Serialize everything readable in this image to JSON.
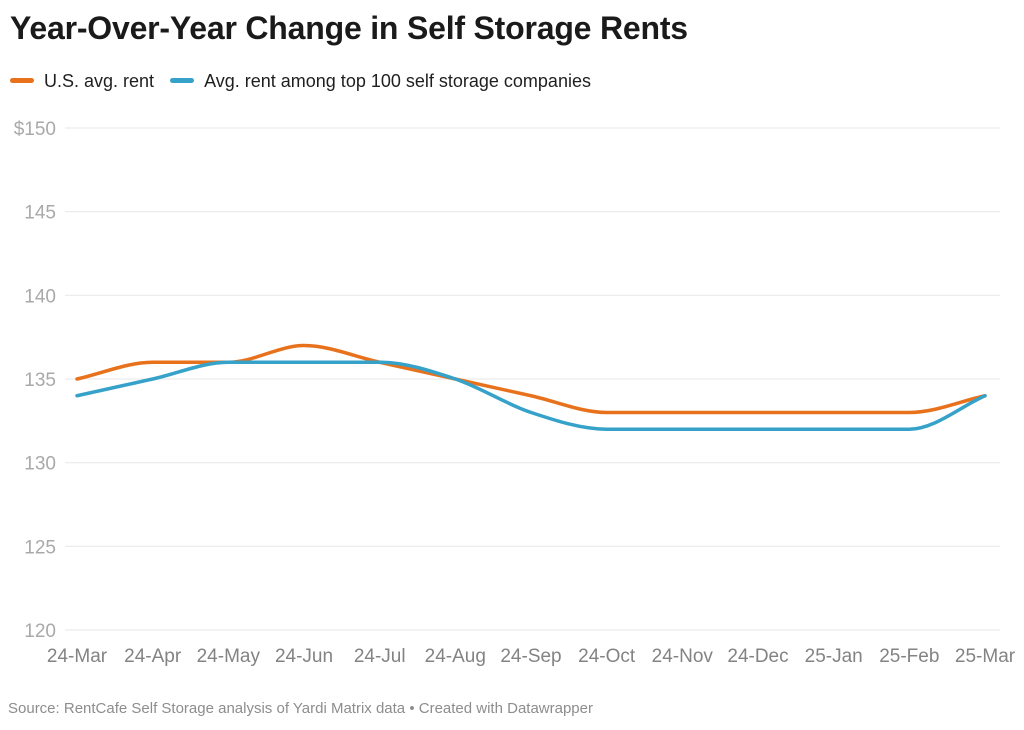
{
  "header": {
    "title": "Year-Over-Year Change in Self Storage Rents"
  },
  "legend": {
    "items": [
      {
        "label": "U.S. avg. rent",
        "color": "#e8721c"
      },
      {
        "label": "Avg. rent among top 100 self storage companies",
        "color": "#36a2c9"
      }
    ]
  },
  "chart_data": {
    "type": "line",
    "title": "Year-Over-Year Change in Self Storage Rents",
    "categories": [
      "24-Mar",
      "24-Apr",
      "24-May",
      "24-Jun",
      "24-Jul",
      "24-Aug",
      "24-Sep",
      "24-Oct",
      "24-Nov",
      "24-Dec",
      "25-Jan",
      "25-Feb",
      "25-Mar"
    ],
    "series": [
      {
        "name": "U.S. avg. rent",
        "color": "#e8721c",
        "values": [
          135,
          136,
          136,
          137,
          136,
          135,
          134,
          133,
          133,
          133,
          133,
          133,
          134
        ]
      },
      {
        "name": "Avg. rent among top 100 self storage companies",
        "color": "#36a2c9",
        "values": [
          134,
          135,
          136,
          136,
          136,
          135,
          133,
          132,
          132,
          132,
          132,
          132,
          134
        ]
      }
    ],
    "y_ticks": [
      {
        "label": "$150",
        "value": 150
      },
      {
        "label": "145",
        "value": 145
      },
      {
        "label": "140",
        "value": 140
      },
      {
        "label": "135",
        "value": 135
      },
      {
        "label": "130",
        "value": 130
      },
      {
        "label": "125",
        "value": 125
      },
      {
        "label": "120",
        "value": 120
      }
    ],
    "ylim": [
      120,
      150
    ],
    "unit_prefix": "$",
    "grid": "horizontal",
    "legend_position": "top",
    "curve": "smooth-monotone"
  },
  "footer": {
    "source_text": "Source: RentCafe Self Storage analysis of Yardi Matrix data • Created with Datawrapper"
  },
  "colors": {
    "background": "#ffffff",
    "grid": "#e7e7e7",
    "title_text": "#1a1a1a",
    "legend_text": "#1f1f1f",
    "y_tick_label": "#a9a9a9",
    "x_tick_label": "#838383",
    "footer_text": "#8d8d8d"
  }
}
